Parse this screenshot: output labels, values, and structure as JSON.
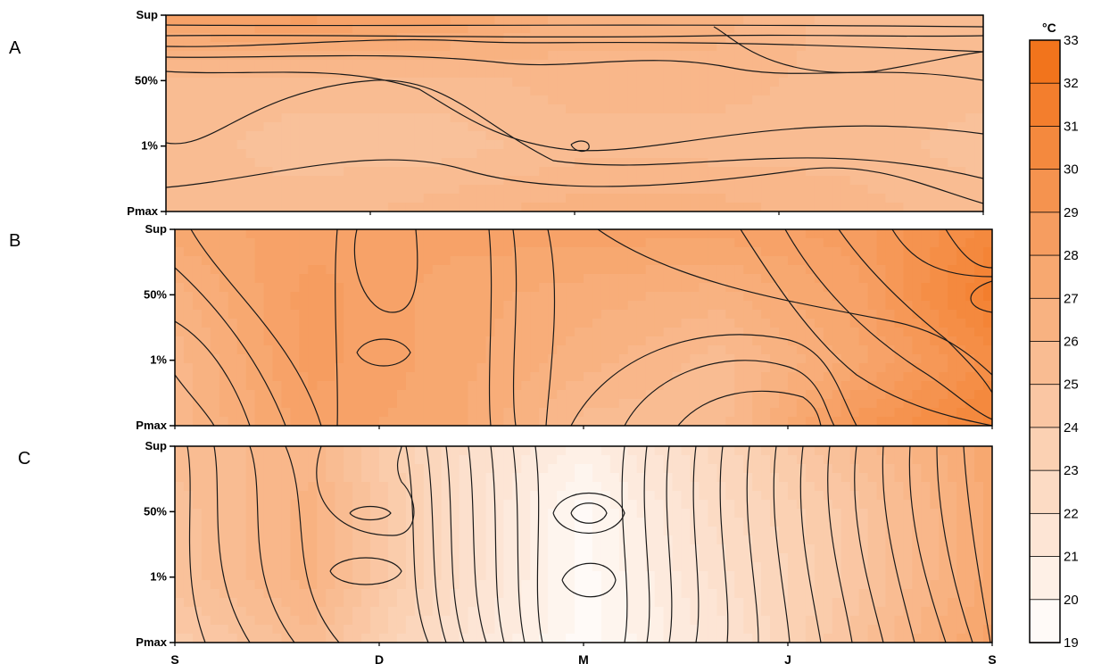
{
  "chart_data": [
    {
      "type": "heatmap",
      "panel": "A",
      "x_ticks": [
        "S",
        "D",
        "M",
        "J",
        "S"
      ],
      "y_ticks": [
        "Sup",
        "50%",
        "1%",
        "Pmax"
      ],
      "z_unit": "°C",
      "grid": [
        [
          28.0,
          28.5,
          28.0,
          26.5,
          26.5,
          25.5,
          25.5
        ],
        [
          25.5,
          25.5,
          25.5,
          26.0,
          26.0,
          25.5,
          25.5
        ],
        [
          25.5,
          25.0,
          25.0,
          25.5,
          25.5,
          25.5,
          25.0
        ],
        [
          25.5,
          25.5,
          26.0,
          26.5,
          26.5,
          26.0,
          25.5
        ]
      ]
    },
    {
      "type": "heatmap",
      "panel": "B",
      "x_ticks": [
        "S",
        "D",
        "M",
        "J",
        "S"
      ],
      "y_ticks": [
        "Sup",
        "50%",
        "1%",
        "Pmax"
      ],
      "z_unit": "°C",
      "grid": [
        [
          27.5,
          28.0,
          28.0,
          28.0,
          28.0,
          28.5,
          30.5
        ],
        [
          26.5,
          28.5,
          27.5,
          27.0,
          26.5,
          28.0,
          31.5
        ],
        [
          26.0,
          28.5,
          27.5,
          26.5,
          25.5,
          27.5,
          30.0
        ],
        [
          26.0,
          28.0,
          27.5,
          25.5,
          25.5,
          29.0,
          31.0
        ]
      ]
    },
    {
      "type": "heatmap",
      "panel": "C",
      "x_ticks": [
        "S",
        "D",
        "M",
        "J",
        "S"
      ],
      "y_ticks": [
        "Sup",
        "50%",
        "1%",
        "Pmax"
      ],
      "z_unit": "°C",
      "grid": [
        [
          25.5,
          26.0,
          22.5,
          20.5,
          23.0,
          25.5,
          27.5
        ],
        [
          25.0,
          26.5,
          22.5,
          19.5,
          22.5,
          24.5,
          27.5
        ],
        [
          25.0,
          26.5,
          22.5,
          19.5,
          22.0,
          24.5,
          27.5
        ],
        [
          24.0,
          25.5,
          22.0,
          19.5,
          21.5,
          25.0,
          28.0
        ]
      ]
    }
  ],
  "legend": {
    "unit": "°C",
    "ticks": [
      19,
      20,
      21,
      22,
      23,
      24,
      25,
      26,
      27,
      28,
      29,
      30,
      31,
      32,
      33
    ],
    "color_low": "#ffffff",
    "color_high": "#f26f14"
  },
  "panels": [
    {
      "letter": "A"
    },
    {
      "letter": "B"
    },
    {
      "letter": "C"
    }
  ]
}
